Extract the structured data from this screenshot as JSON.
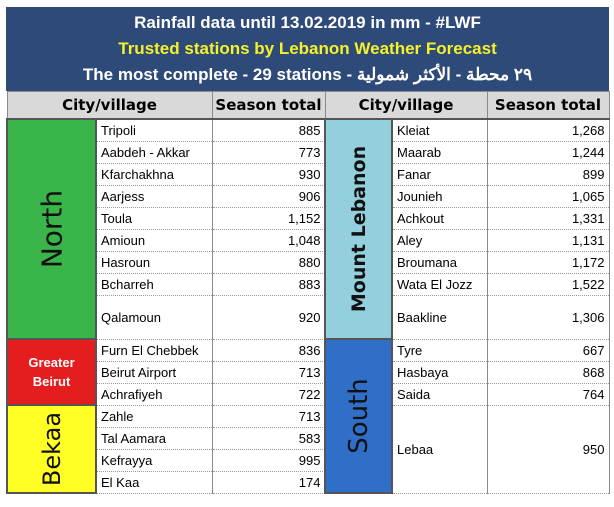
{
  "header": {
    "line1": "Rainfall data until 13.02.2019 in mm - #LWF",
    "line2": "Trusted stations by Lebanon Weather Forecast",
    "line3": "The most complete - 29 stations - ٢٩ محطة - الأكثر شمولية"
  },
  "columns": {
    "city": "City/village",
    "total": "Season total"
  },
  "colors": {
    "header_bg": "#2e4a78",
    "header_highlight": "#f5f22a",
    "north": "#39b54a",
    "greater_beirut": "#e41e1e",
    "bekaa": "#ffff26",
    "mount_lebanon": "#93cfdc",
    "south": "#2f6fc7"
  },
  "left": {
    "north": {
      "label": "North",
      "stations": [
        {
          "city": "Tripoli",
          "total": "885"
        },
        {
          "city": "Aabdeh - Akkar",
          "total": "773"
        },
        {
          "city": "Kfarchakhna",
          "total": "930"
        },
        {
          "city": "Aarjess",
          "total": "906"
        },
        {
          "city": "Toula",
          "total": "1,152"
        },
        {
          "city": "Amioun",
          "total": "1,048"
        },
        {
          "city": "Hasroun",
          "total": "880"
        },
        {
          "city": "Bcharreh",
          "total": "883"
        },
        {
          "city": "Qalamoun",
          "total": "920"
        }
      ]
    },
    "greater_beirut": {
      "label_line1": "Greater",
      "label_line2": "Beirut",
      "stations": [
        {
          "city": "Furn El Chebbek",
          "total": "836"
        },
        {
          "city": "Beirut Airport",
          "total": "713"
        },
        {
          "city": "Achrafiyeh",
          "total": "722"
        }
      ]
    },
    "bekaa": {
      "label": "Bekaa",
      "stations": [
        {
          "city": "Zahle",
          "total": "713"
        },
        {
          "city": "Tal Aamara",
          "total": "583"
        },
        {
          "city": "Kefrayya",
          "total": "995"
        },
        {
          "city": "El Kaa",
          "total": "174"
        }
      ]
    }
  },
  "right": {
    "mount_lebanon": {
      "label": "Mount Lebanon",
      "stations": [
        {
          "city": "Kleiat",
          "total": "1,268"
        },
        {
          "city": "Maarab",
          "total": "1,244"
        },
        {
          "city": "Fanar",
          "total": "899"
        },
        {
          "city": "Jounieh",
          "total": "1,065"
        },
        {
          "city": "Achkout",
          "total": "1,331"
        },
        {
          "city": "Aley",
          "total": "1,131"
        },
        {
          "city": "Broumana",
          "total": "1,172"
        },
        {
          "city": "Wata El Jozz",
          "total": "1,522"
        },
        {
          "city": "Baakline",
          "total": "1,306"
        }
      ]
    },
    "south": {
      "label": "South",
      "stations": [
        {
          "city": "Tyre",
          "total": "667"
        },
        {
          "city": "Hasbaya",
          "total": "868"
        },
        {
          "city": "Saida",
          "total": "764"
        },
        {
          "city": "Lebaa",
          "total": "950"
        }
      ]
    }
  }
}
